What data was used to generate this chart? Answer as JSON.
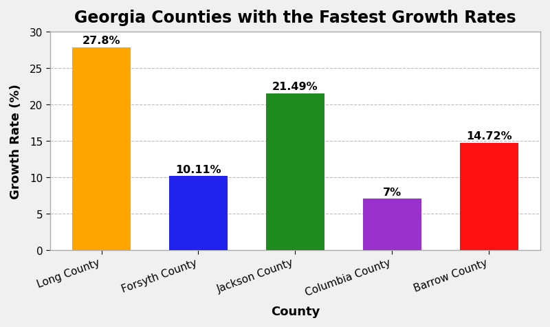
{
  "title": "Georgia Counties with the Fastest Growth Rates",
  "xlabel": "County",
  "ylabel": "Growth Rate (%)",
  "categories": [
    "Long County",
    "Forsyth County",
    "Jackson County",
    "Columbia County",
    "Barrow County"
  ],
  "values": [
    27.8,
    10.11,
    21.49,
    7.0,
    14.72
  ],
  "labels": [
    "27.8%",
    "10.11%",
    "21.49%",
    "7%",
    "14.72%"
  ],
  "bar_colors": [
    "#FFA500",
    "#2222EE",
    "#1E8B1E",
    "#9932CC",
    "#FF1111"
  ],
  "ylim": [
    0,
    30
  ],
  "yticks": [
    0,
    5,
    10,
    15,
    20,
    25,
    30
  ],
  "fig_bg_color": "#f0f0f0",
  "plot_bg_color": "#ffffff",
  "text_color": "#000000",
  "grid_color": "#aaaaaa",
  "border_color": "#aaaaaa",
  "title_fontsize": 17,
  "label_fontsize": 13,
  "tick_fontsize": 11,
  "bar_label_fontsize": 11.5,
  "bar_width": 0.6,
  "xtick_rotation": 20
}
